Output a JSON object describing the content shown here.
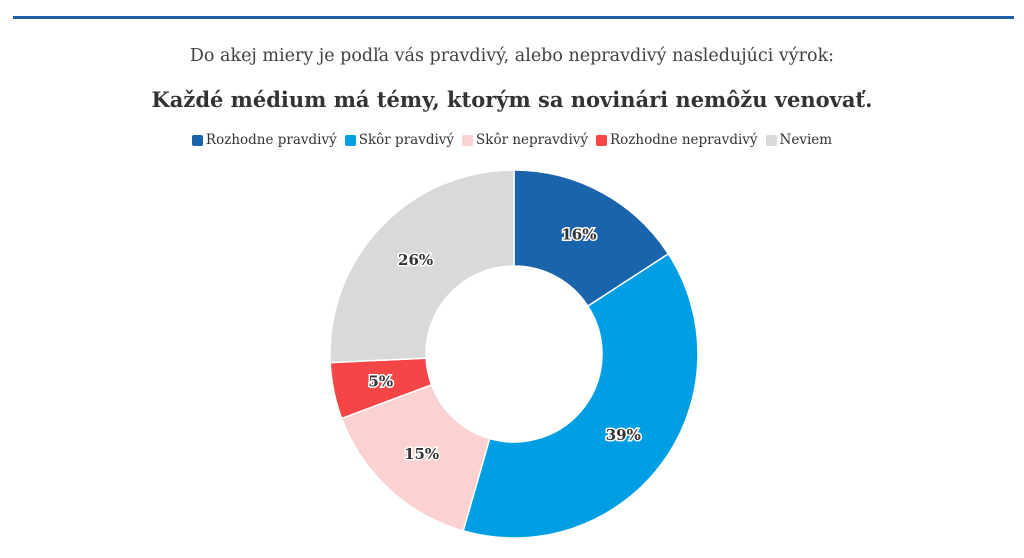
{
  "header": {
    "question": "Do akej miery je podľa vás pravdivý, alebo nepravdivý nasledujúci výrok:",
    "statement": "Každé médium má témy, ktorým sa novinári nemôžu venovať."
  },
  "colors": {
    "rule": "#1f5fa8"
  },
  "chart_data": {
    "type": "pie",
    "donut": true,
    "title": "Každé médium má témy, ktorým sa novinári nemôžu venovať.",
    "subtitle": "Do akej miery je podľa vás pravdivý, alebo nepravdivý nasledujúci výrok:",
    "legend_position": "top",
    "categories": [
      "Rozhodne pravdivý",
      "Skôr pravdivý",
      "Skôr nepravdivý",
      "Rozhodne nepravdivý",
      "Neviem"
    ],
    "values": [
      16,
      39,
      15,
      5,
      26
    ],
    "labels": [
      "16%",
      "39%",
      "15%",
      "5%",
      "26%"
    ],
    "colors": [
      "#1a64ac",
      "#009fe3",
      "#fcd1d1",
      "#f44646",
      "#d9d9d9"
    ]
  }
}
